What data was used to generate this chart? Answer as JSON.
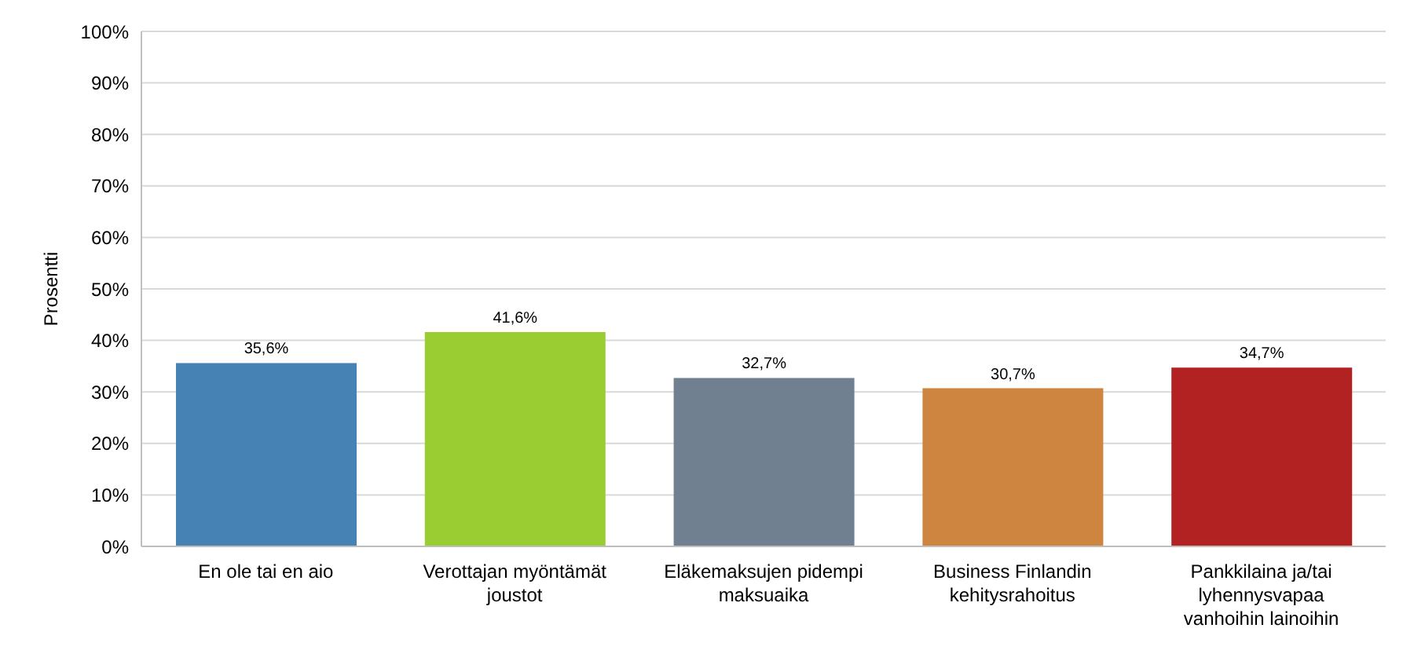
{
  "chart_data": {
    "type": "bar",
    "ylabel": "Prosentti",
    "categories": [
      "En ole tai en aio",
      "Verottajan myöntämät joustot",
      "Eläkemaksujen pidempi maksuaika",
      "Business Finlandin kehitysrahoitus",
      "Pankkilaina ja/tai lyhennysvapaa vanhoihin lainoihin"
    ],
    "values": [
      35.6,
      41.6,
      32.7,
      30.7,
      34.7
    ],
    "colors": [
      "#4682b4",
      "#9acd32",
      "#708090",
      "#cd853f",
      "#b22222"
    ],
    "value_labels": [
      "35,6%",
      "41,6%",
      "32,7%",
      "30,7%",
      "34,7%"
    ],
    "ylim": [
      0,
      100
    ],
    "yticks": [
      {
        "value": 0,
        "label": "0%"
      },
      {
        "value": 10,
        "label": "10%"
      },
      {
        "value": 20,
        "label": "20%"
      },
      {
        "value": 30,
        "label": "30%"
      },
      {
        "value": 40,
        "label": "40%"
      },
      {
        "value": 50,
        "label": "50%"
      },
      {
        "value": 60,
        "label": "60%"
      },
      {
        "value": 70,
        "label": "70%"
      },
      {
        "value": 80,
        "label": "80%"
      },
      {
        "value": 90,
        "label": "90%"
      },
      {
        "value": 100,
        "label": "100%"
      }
    ],
    "grid": "y",
    "legend": false
  }
}
